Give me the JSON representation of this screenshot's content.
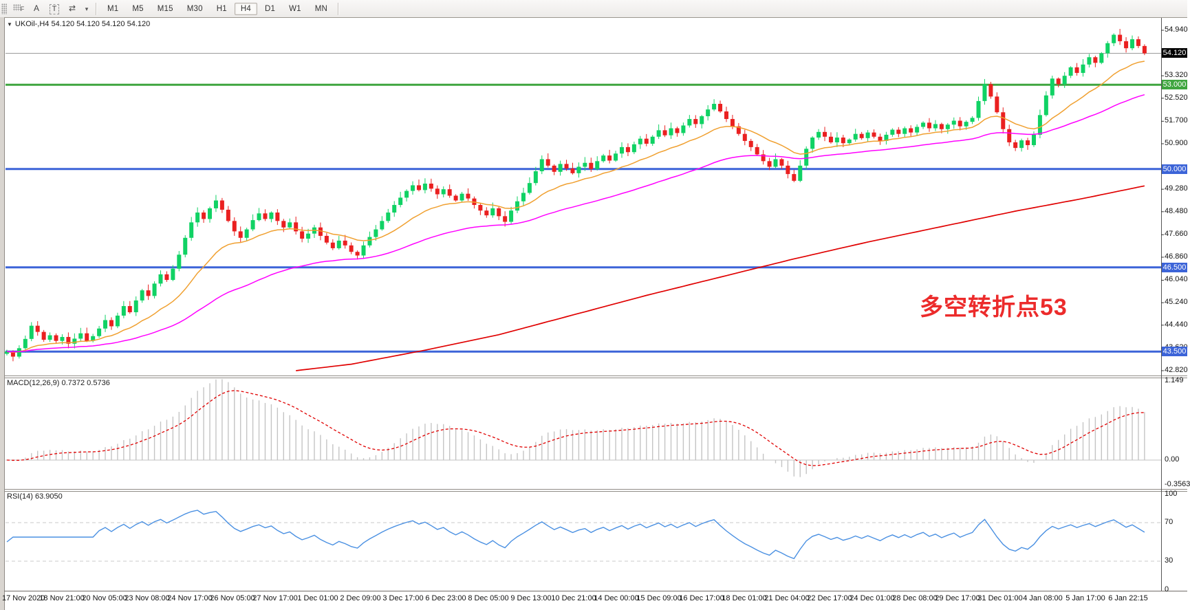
{
  "toolbar": {
    "icons": [
      {
        "name": "dotted-grid-f-icon",
        "glyph": "F"
      },
      {
        "name": "letter-a-icon",
        "glyph": "A"
      },
      {
        "name": "text-box-icon",
        "glyph": "T"
      },
      {
        "name": "arrows-icon",
        "glyph": "⇄"
      },
      {
        "name": "dropdown-caret-icon",
        "glyph": "▾"
      }
    ],
    "timeframes": [
      {
        "label": "M1",
        "active": false
      },
      {
        "label": "M5",
        "active": false
      },
      {
        "label": "M15",
        "active": false
      },
      {
        "label": "M30",
        "active": false
      },
      {
        "label": "H1",
        "active": false
      },
      {
        "label": "H4",
        "active": true
      },
      {
        "label": "D1",
        "active": false
      },
      {
        "label": "W1",
        "active": false
      },
      {
        "label": "MN",
        "active": false
      }
    ]
  },
  "header": {
    "symbol_line": "UKOil-,H4  54.120 54.120 54.120 54.120"
  },
  "annotation": {
    "text": "多空转折点53",
    "color": "#ec2b2b"
  },
  "price_axis": {
    "ticks": [
      "54.940",
      "53.320",
      "52.520",
      "51.700",
      "50.900",
      "49.280",
      "48.480",
      "47.660",
      "46.860",
      "46.040",
      "45.240",
      "44.440",
      "43.620",
      "42.820"
    ],
    "tick_prices": [
      54.94,
      53.32,
      52.52,
      51.7,
      50.9,
      49.28,
      48.48,
      47.66,
      46.86,
      46.04,
      45.24,
      44.44,
      43.62,
      42.82
    ],
    "current": {
      "label": "54.120",
      "price": 54.12,
      "bg": "#000000"
    },
    "levels": [
      {
        "label": "53.000",
        "price": 53.0,
        "color": "#3fa53f",
        "width": 3
      },
      {
        "label": "50.000",
        "price": 50.0,
        "color": "#3c64d8",
        "width": 3
      },
      {
        "label": "46.500",
        "price": 46.5,
        "color": "#3c64d8",
        "width": 3
      },
      {
        "label": "43.500",
        "price": 43.5,
        "color": "#3c64d8",
        "width": 3
      }
    ]
  },
  "time_axis": {
    "labels": [
      "17 Nov 2020",
      "18 Nov 21:00",
      "20 Nov 05:00",
      "23 Nov 08:00",
      "24 Nov 17:00",
      "26 Nov 05:00",
      "27 Nov 17:00",
      "1 Dec 01:00",
      "2 Dec 09:00",
      "3 Dec 17:00",
      "6 Dec 23:00",
      "8 Dec 05:00",
      "9 Dec 13:00",
      "10 Dec 21:00",
      "14 Dec 00:00",
      "15 Dec 09:00",
      "16 Dec 17:00",
      "18 Dec 01:00",
      "21 Dec 04:00",
      "22 Dec 17:00",
      "24 Dec 01:00",
      "28 Dec 08:00",
      "29 Dec 17:00",
      "31 Dec 01:00",
      "4 Jan 08:00",
      "5 Jan 17:00",
      "6 Jan 22:15"
    ]
  },
  "macd_panel": {
    "label": "MACD(12,26,9) 0.7372 0.5736",
    "axis": [
      "1.149",
      "0.00",
      "-0.3563"
    ],
    "params": {
      "fast": 12,
      "slow": 26,
      "signal": 9
    },
    "values": {
      "macd": 0.7372,
      "signal": 0.5736
    },
    "axis_range": {
      "max": 1.149,
      "min": -0.3563
    }
  },
  "rsi_panel": {
    "label": "RSI(14) 63.9050",
    "axis": [
      "100",
      "70",
      "30",
      "0"
    ],
    "period": 14,
    "value": 63.905,
    "levels": [
      70,
      30
    ]
  },
  "chart_data": {
    "type": "candlestick",
    "symbol": "UKOil-",
    "timeframe": "H4",
    "ohlc_display": [
      54.12,
      54.12,
      54.12,
      54.12
    ],
    "colors": {
      "bull": "#10d264",
      "bear": "#ea2020",
      "ma_fast": "#f0a030",
      "ma_medium": "#ff00ff",
      "ma_slow": "#e00000",
      "macd_hist": "#c4c4c4",
      "macd_signal": "#e00000",
      "rsi": "#4a90e2",
      "level_blue": "#3c64d8",
      "level_green": "#3fa53f",
      "current_line": "#9a9a9a"
    },
    "candles": {
      "open_first": 43.42,
      "closes": [
        43.5,
        43.32,
        43.62,
        43.95,
        44.42,
        44.2,
        43.92,
        44.08,
        43.88,
        44.02,
        43.78,
        43.96,
        44.15,
        43.88,
        44.05,
        44.32,
        44.62,
        44.4,
        44.78,
        45.12,
        44.9,
        45.32,
        45.68,
        45.48,
        45.92,
        46.25,
        46.05,
        46.45,
        46.95,
        47.55,
        48.1,
        48.45,
        48.22,
        48.6,
        48.88,
        48.55,
        48.15,
        47.78,
        47.55,
        47.85,
        48.18,
        48.42,
        48.22,
        48.45,
        48.15,
        47.92,
        48.1,
        47.78,
        47.52,
        47.7,
        47.92,
        47.62,
        47.38,
        47.18,
        47.45,
        47.28,
        47.05,
        46.92,
        47.28,
        47.58,
        47.85,
        48.15,
        48.45,
        48.72,
        48.98,
        49.22,
        49.42,
        49.25,
        49.48,
        49.3,
        49.1,
        49.28,
        49.05,
        48.88,
        49.12,
        48.95,
        48.72,
        48.52,
        48.35,
        48.6,
        48.32,
        48.12,
        48.52,
        48.85,
        49.15,
        49.5,
        49.92,
        50.35,
        50.12,
        49.9,
        50.18,
        50.02,
        49.85,
        50.08,
        50.22,
        50.0,
        50.28,
        50.48,
        50.3,
        50.55,
        50.78,
        50.6,
        50.88,
        51.08,
        50.9,
        51.15,
        51.38,
        51.2,
        51.45,
        51.28,
        51.55,
        51.78,
        51.6,
        51.88,
        52.12,
        52.32,
        52.05,
        51.78,
        51.52,
        51.25,
        51.0,
        50.78,
        50.52,
        50.28,
        50.08,
        50.35,
        50.12,
        49.82,
        49.58,
        50.12,
        50.72,
        51.12,
        51.32,
        51.15,
        50.95,
        51.12,
        50.92,
        51.05,
        51.25,
        51.1,
        51.3,
        51.15,
        51.0,
        51.22,
        51.4,
        51.25,
        51.45,
        51.3,
        51.5,
        51.65,
        51.45,
        51.6,
        51.42,
        51.58,
        51.72,
        51.52,
        51.68,
        51.82,
        52.42,
        53.02,
        52.58,
        52.02,
        51.42,
        50.95,
        50.75,
        51.02,
        50.85,
        51.22,
        51.92,
        52.62,
        53.22,
        53.02,
        53.32,
        53.62,
        53.42,
        53.72,
        53.98,
        53.78,
        54.12,
        54.48,
        54.78,
        54.55,
        54.3,
        54.62,
        54.38,
        54.12
      ]
    },
    "moving_averages": {
      "fast_period": 16,
      "medium_period": 48,
      "slow_anchors": [
        [
          47,
          42.82
        ],
        [
          56,
          43.05
        ],
        [
          68,
          43.55
        ],
        [
          80,
          44.1
        ],
        [
          92,
          44.8
        ],
        [
          104,
          45.5
        ],
        [
          116,
          46.15
        ],
        [
          128,
          46.8
        ],
        [
          140,
          47.4
        ],
        [
          152,
          47.95
        ],
        [
          164,
          48.5
        ],
        [
          175,
          48.95
        ],
        [
          185,
          49.4
        ]
      ]
    },
    "price_range_visible": {
      "top": 55.35,
      "bottom": 42.67
    }
  }
}
